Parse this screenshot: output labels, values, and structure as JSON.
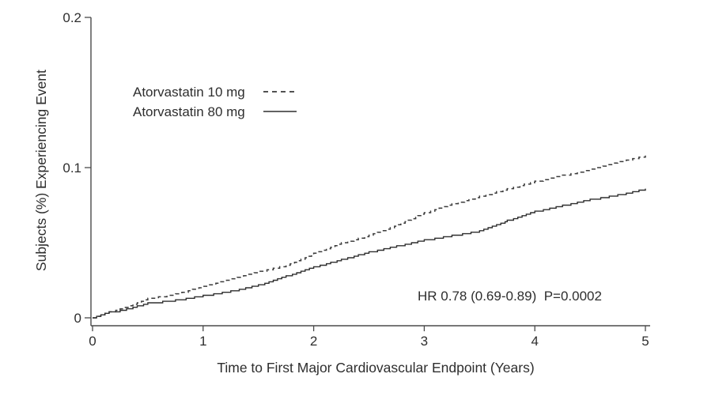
{
  "figure": {
    "background": "#ffffff",
    "text_color": "#2e2e2e",
    "axis_color": "#4a4a4a"
  },
  "chart_data": {
    "type": "line",
    "subtype": "kaplan-meier-step",
    "title": "",
    "xlabel": "Time to First Major Cardiovascular Endpoint (Years)",
    "ylabel": "Subjects (%) Experiencing Event",
    "xlim": [
      0,
      5
    ],
    "ylim": [
      0,
      0.2
    ],
    "x_ticks": [
      "0",
      "1",
      "2",
      "3",
      "4",
      "5"
    ],
    "y_ticks": [
      "0",
      "0.1",
      "0.2"
    ],
    "grid": false,
    "legend_position": "upper-left-inside",
    "annotation": "HR 0.78 (0.69-0.89)  P=0.0002",
    "series": [
      {
        "name": "Atorvastatin 10 mg",
        "line_style": "dashed",
        "color": "#3a3a3a",
        "points": [
          [
            0,
            0
          ],
          [
            0.15,
            0.004
          ],
          [
            0.25,
            0.006
          ],
          [
            0.5,
            0.013
          ],
          [
            0.75,
            0.016
          ],
          [
            1,
            0.021
          ],
          [
            1.25,
            0.026
          ],
          [
            1.5,
            0.031
          ],
          [
            1.75,
            0.035
          ],
          [
            2,
            0.043
          ],
          [
            2.25,
            0.05
          ],
          [
            2.5,
            0.055
          ],
          [
            2.75,
            0.062
          ],
          [
            3,
            0.07
          ],
          [
            3.25,
            0.076
          ],
          [
            3.5,
            0.081
          ],
          [
            3.75,
            0.086
          ],
          [
            4,
            0.091
          ],
          [
            4.25,
            0.095
          ],
          [
            4.5,
            0.099
          ],
          [
            4.75,
            0.104
          ],
          [
            5,
            0.108
          ]
        ]
      },
      {
        "name": "Atorvastatin 80 mg",
        "line_style": "solid",
        "color": "#2e2e2e",
        "points": [
          [
            0,
            0
          ],
          [
            0.15,
            0.004
          ],
          [
            0.25,
            0.005
          ],
          [
            0.5,
            0.01
          ],
          [
            0.75,
            0.012
          ],
          [
            1,
            0.015
          ],
          [
            1.25,
            0.018
          ],
          [
            1.5,
            0.022
          ],
          [
            1.75,
            0.028
          ],
          [
            2,
            0.034
          ],
          [
            2.25,
            0.039
          ],
          [
            2.5,
            0.044
          ],
          [
            2.75,
            0.048
          ],
          [
            3,
            0.052
          ],
          [
            3.25,
            0.055
          ],
          [
            3.5,
            0.058
          ],
          [
            3.75,
            0.065
          ],
          [
            4,
            0.071
          ],
          [
            4.25,
            0.075
          ],
          [
            4.5,
            0.079
          ],
          [
            4.75,
            0.082
          ],
          [
            5,
            0.086
          ]
        ]
      }
    ]
  }
}
